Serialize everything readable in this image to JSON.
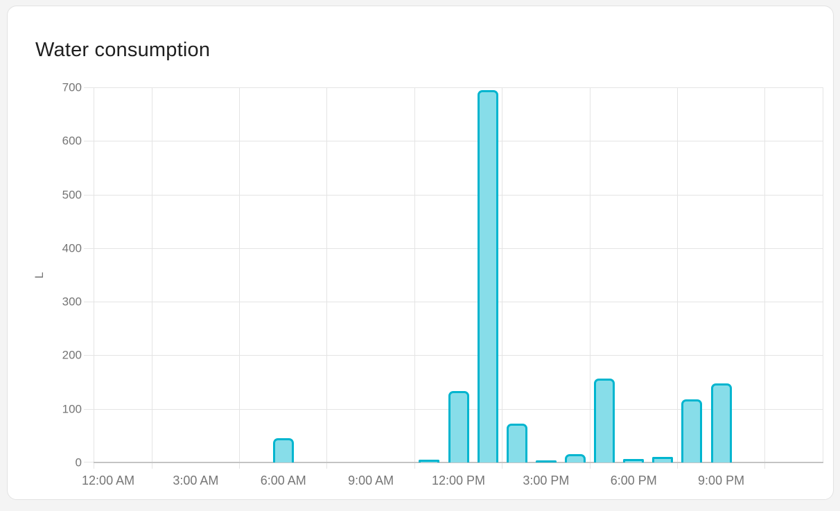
{
  "card": {
    "title": "Water consumption"
  },
  "chart_data": {
    "type": "bar",
    "title": "Water consumption",
    "xlabel": "",
    "ylabel": "L",
    "ylim": [
      0,
      700
    ],
    "y_ticks": [
      0,
      100,
      200,
      300,
      400,
      500,
      600,
      700
    ],
    "x_tick_labels": [
      "12:00 AM",
      "3:00 AM",
      "6:00 AM",
      "9:00 AM",
      "12:00 PM",
      "3:00 PM",
      "6:00 PM",
      "9:00 PM"
    ],
    "x_tick_hours": [
      0,
      3,
      6,
      9,
      12,
      15,
      18,
      21
    ],
    "grid_hours": [
      2,
      5,
      8,
      11,
      14,
      17,
      20,
      23
    ],
    "hours_span": 25,
    "grid": true,
    "legend": "none",
    "categories": [
      "12:00 AM",
      "1:00 AM",
      "2:00 AM",
      "3:00 AM",
      "4:00 AM",
      "5:00 AM",
      "6:00 AM",
      "7:00 AM",
      "8:00 AM",
      "9:00 AM",
      "10:00 AM",
      "11:00 AM",
      "12:00 PM",
      "1:00 PM",
      "2:00 PM",
      "3:00 PM",
      "4:00 PM",
      "5:00 PM",
      "6:00 PM",
      "7:00 PM",
      "8:00 PM",
      "9:00 PM",
      "10:00 PM",
      "11:00 PM"
    ],
    "values": [
      0,
      0,
      0,
      0,
      0,
      0,
      45,
      0,
      0,
      0,
      0,
      5,
      133,
      695,
      73,
      2,
      16,
      157,
      7,
      10,
      118,
      148,
      0,
      0
    ],
    "unit": "L",
    "colors": {
      "bar_fill": "#87dde9",
      "bar_border": "#00b5cf",
      "gridline": "#e4e4e4",
      "axis_line": "#c4c4c4",
      "tick_label": "#757575",
      "title": "#1f1f1f",
      "card_background": "#ffffff",
      "page_background": "#f4f4f4"
    }
  }
}
